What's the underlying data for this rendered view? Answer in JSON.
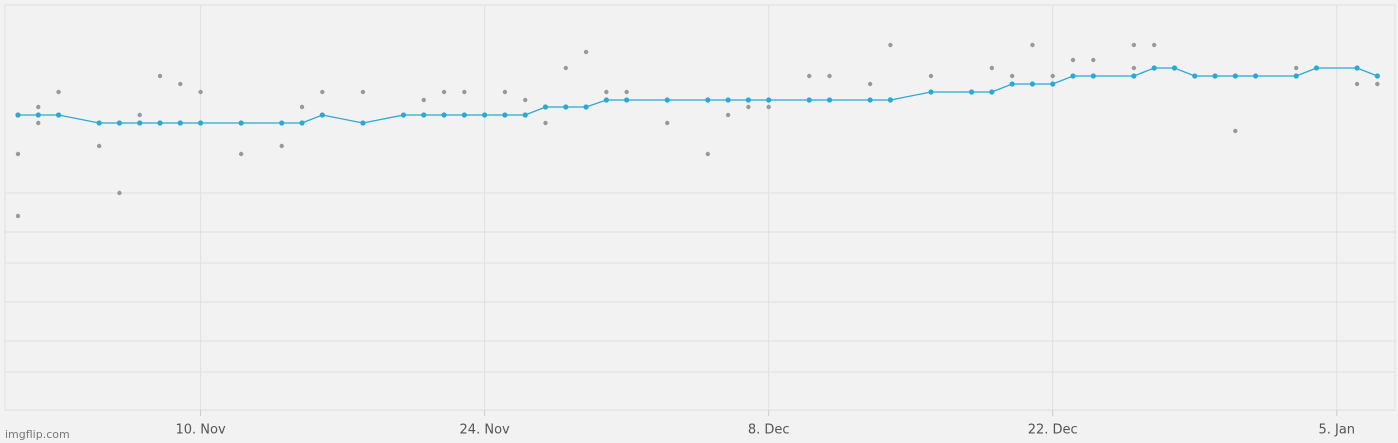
{
  "chart_data": {
    "type": "line",
    "xlim": [
      -0.64,
      67.87
    ],
    "xticks": [
      {
        "value": 9,
        "label": "10. Nov"
      },
      {
        "value": 23,
        "label": "24. Nov"
      },
      {
        "value": 37,
        "label": "8. Dec"
      },
      {
        "value": 51,
        "label": "22. Dec"
      },
      {
        "value": 65,
        "label": "5. Jan"
      }
    ],
    "ylim": [
      0,
      405
    ],
    "yticks": [
      38,
      69,
      108,
      147,
      178,
      217
    ],
    "grid": true,
    "series": [
      {
        "color": "#999999",
        "line": false,
        "x": [
          0,
          0,
          1,
          1,
          2,
          4,
          5,
          6,
          7,
          8,
          9,
          11,
          13,
          14,
          15,
          17,
          20,
          21,
          22,
          24,
          25,
          26,
          27,
          28,
          29,
          30,
          32,
          34,
          35,
          36,
          37,
          39,
          40,
          42,
          43,
          45,
          48,
          49,
          50,
          51,
          52,
          53,
          55,
          55,
          56,
          60,
          63,
          66,
          67
        ],
        "values": [
          256,
          194,
          303,
          287,
          318,
          264,
          217,
          295,
          334,
          326,
          318,
          256,
          264,
          303,
          318,
          318,
          310,
          318,
          318,
          318,
          310,
          287,
          342,
          358,
          318,
          318,
          287,
          256,
          295,
          303,
          303,
          334,
          334,
          326,
          365,
          334,
          342,
          334,
          365,
          334,
          350,
          350,
          365,
          342,
          365,
          279,
          342,
          326,
          326
        ]
      },
      {
        "color": "#2aa9d6",
        "line": true,
        "x": [
          0,
          1,
          2,
          4,
          5,
          6,
          7,
          8,
          9,
          11,
          13,
          14,
          15,
          17,
          19,
          20,
          21,
          22,
          23,
          24,
          25,
          26,
          27,
          28,
          29,
          30,
          32,
          34,
          35,
          36,
          37,
          39,
          40,
          42,
          43,
          45,
          47,
          48,
          49,
          50,
          51,
          52,
          53,
          55,
          56,
          57,
          58,
          59,
          60,
          61,
          63,
          64,
          66,
          67
        ],
        "values": [
          295,
          295,
          295,
          287,
          287,
          287,
          287,
          287,
          287,
          287,
          287,
          287,
          295,
          287,
          295,
          295,
          295,
          295,
          295,
          295,
          295,
          303,
          303,
          303,
          310,
          310,
          310,
          310,
          310,
          310,
          310,
          310,
          310,
          310,
          310,
          318,
          318,
          318,
          326,
          326,
          326,
          334,
          334,
          334,
          342,
          342,
          334,
          334,
          334,
          334,
          334,
          342,
          342,
          334
        ]
      }
    ]
  },
  "watermark": "imgflip.com"
}
